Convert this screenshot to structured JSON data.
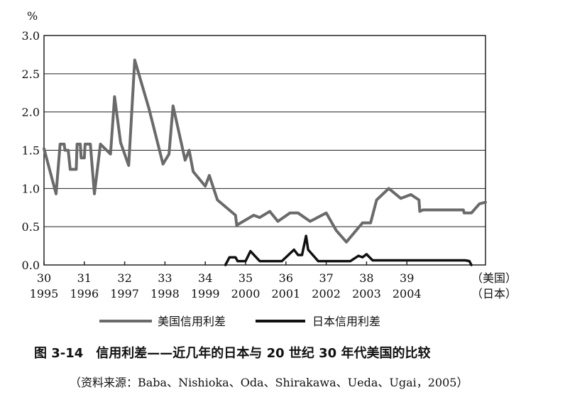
{
  "chart_data": {
    "type": "line",
    "ylabel": "%",
    "ylim": [
      0,
      3.0
    ],
    "yticks": [
      "0.0",
      "0.5",
      "1.0",
      "1.5",
      "2.0",
      "2.5",
      "3.0"
    ],
    "x_labels_us": [
      "30",
      "31",
      "32",
      "33",
      "34",
      "35",
      "36",
      "37",
      "38",
      "39"
    ],
    "x_labels_jp": [
      "1995",
      "1996",
      "1997",
      "1998",
      "1999",
      "2000",
      "2001",
      "2002",
      "2003",
      "2004"
    ],
    "x_axis_note_us": "（美国）",
    "x_axis_note_jp": "（日本）",
    "grid": true,
    "legend_position": "bottom",
    "series": [
      {
        "name": "美国信用利差",
        "color": "#6a6a6a",
        "points": [
          [
            30.0,
            1.52
          ],
          [
            30.3,
            0.93
          ],
          [
            30.4,
            1.58
          ],
          [
            30.5,
            1.58
          ],
          [
            30.52,
            1.5
          ],
          [
            30.6,
            1.5
          ],
          [
            30.65,
            1.25
          ],
          [
            30.8,
            1.25
          ],
          [
            30.82,
            1.58
          ],
          [
            30.9,
            1.58
          ],
          [
            30.92,
            1.4
          ],
          [
            31.0,
            1.4
          ],
          [
            31.02,
            1.58
          ],
          [
            31.15,
            1.58
          ],
          [
            31.25,
            0.93
          ],
          [
            31.4,
            1.58
          ],
          [
            31.65,
            1.45
          ],
          [
            31.75,
            2.2
          ],
          [
            31.9,
            1.6
          ],
          [
            32.1,
            1.3
          ],
          [
            32.25,
            2.68
          ],
          [
            32.6,
            2.05
          ],
          [
            32.95,
            1.32
          ],
          [
            33.1,
            1.45
          ],
          [
            33.2,
            2.08
          ],
          [
            33.5,
            1.37
          ],
          [
            33.6,
            1.5
          ],
          [
            33.7,
            1.22
          ],
          [
            34.0,
            1.03
          ],
          [
            34.1,
            1.17
          ],
          [
            34.3,
            0.85
          ],
          [
            34.75,
            0.65
          ],
          [
            34.78,
            0.52
          ],
          [
            35.2,
            0.65
          ],
          [
            35.35,
            0.62
          ],
          [
            35.6,
            0.7
          ],
          [
            35.8,
            0.57
          ],
          [
            36.1,
            0.68
          ],
          [
            36.3,
            0.68
          ],
          [
            36.6,
            0.57
          ],
          [
            37.0,
            0.68
          ],
          [
            37.25,
            0.45
          ],
          [
            37.5,
            0.3
          ],
          [
            37.9,
            0.55
          ],
          [
            38.1,
            0.55
          ],
          [
            38.25,
            0.85
          ],
          [
            38.55,
            1.0
          ],
          [
            38.85,
            0.87
          ],
          [
            39.1,
            0.92
          ],
          [
            39.3,
            0.85
          ],
          [
            39.32,
            0.7
          ],
          [
            39.4,
            0.72
          ],
          [
            39.6,
            0.72
          ],
          [
            40.0,
            0.72
          ],
          [
            40.4,
            0.72
          ],
          [
            40.42,
            0.68
          ],
          [
            40.6,
            0.68
          ],
          [
            40.8,
            0.8
          ],
          [
            40.95,
            0.82
          ]
        ]
      },
      {
        "name": "日本信用利差",
        "color": "#111111",
        "points": [
          [
            34.5,
            0.0
          ],
          [
            34.6,
            0.1
          ],
          [
            34.75,
            0.1
          ],
          [
            34.8,
            0.05
          ],
          [
            35.0,
            0.05
          ],
          [
            35.12,
            0.18
          ],
          [
            35.35,
            0.05
          ],
          [
            35.9,
            0.05
          ],
          [
            36.2,
            0.2
          ],
          [
            36.3,
            0.13
          ],
          [
            36.4,
            0.13
          ],
          [
            36.5,
            0.38
          ],
          [
            36.55,
            0.2
          ],
          [
            36.8,
            0.05
          ],
          [
            37.6,
            0.05
          ],
          [
            37.8,
            0.12
          ],
          [
            37.9,
            0.1
          ],
          [
            38.0,
            0.14
          ],
          [
            38.15,
            0.06
          ],
          [
            40.45,
            0.06
          ],
          [
            40.55,
            0.05
          ],
          [
            40.6,
            0.0
          ]
        ]
      }
    ]
  },
  "caption": "图 3-14　信用利差——近几年的日本与 20 世纪 30 年代美国的比较",
  "source": "（资料来源：Baba、Nishioka、Oda、Shirakawa、Ueda、Ugai，2005）"
}
